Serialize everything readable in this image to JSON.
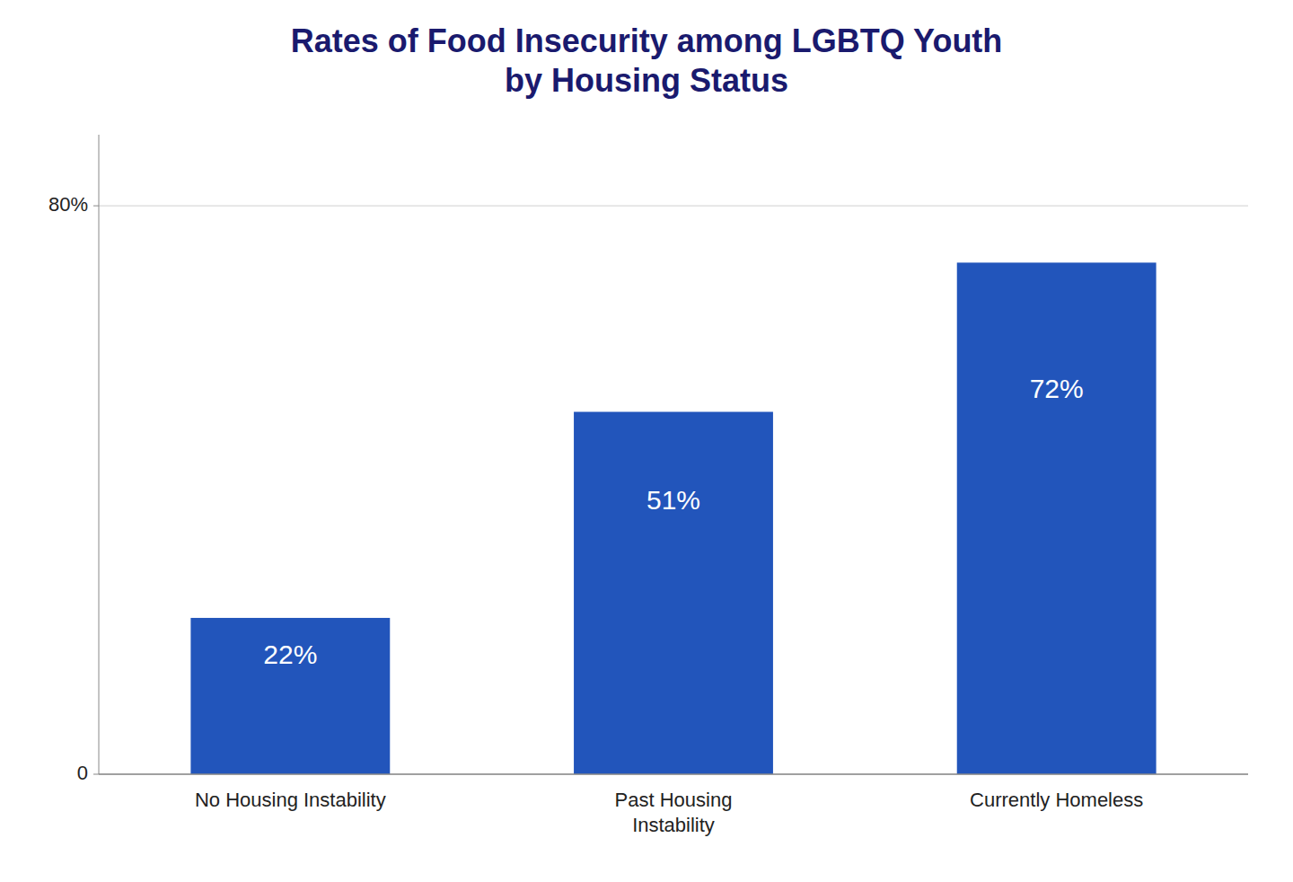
{
  "chart_data": {
    "type": "bar",
    "title": "Rates of Food Insecurity among LGBTQ Youth\nby Housing Status",
    "categories": [
      "No Housing Instability",
      "Past Housing\nInstability",
      "Currently Homeless"
    ],
    "values": [
      22,
      51,
      72
    ],
    "value_labels": [
      "22%",
      "51%",
      "72%"
    ],
    "data_labels": true,
    "color": "#2255bb",
    "ylim": [
      0,
      90
    ],
    "yticks": [
      0,
      {
        "value": 80,
        "label": "80%"
      }
    ],
    "grid": true
  }
}
